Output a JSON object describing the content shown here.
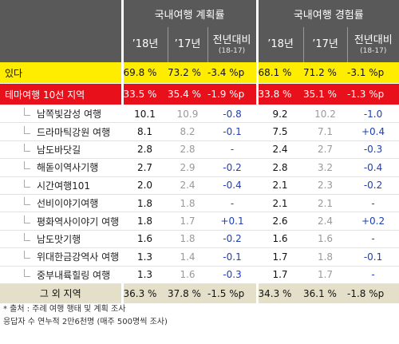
{
  "groups": {
    "plan": "국내여행 계획률",
    "exp": "국내여행 경험률"
  },
  "cols": {
    "y18": "’18년",
    "y17": "’17년",
    "diff": "전년대비",
    "diff_sub": "(18-17)"
  },
  "rows_top": [
    {
      "name": "있다",
      "p18": "69.8 %",
      "p17": "73.2 %",
      "pd": "-3.4 %p",
      "e18": "68.1 %",
      "e17": "71.2 %",
      "ed": "-3.1 %p"
    },
    {
      "name": "테마여행 10선 지역",
      "p18": "33.5 %",
      "p17": "35.4 %",
      "pd": "-1.9 %p",
      "e18": "33.8 %",
      "e17": "35.1 %",
      "ed": "-1.3 %p"
    }
  ],
  "rows": [
    {
      "name": "남쪽빛감성 여행",
      "p18": "10.1",
      "p17": "10.9",
      "pd": "-0.8",
      "e18": "9.2",
      "e17": "10.2",
      "ed": "-1.0"
    },
    {
      "name": "드라마틱강원 여행",
      "p18": "8.1",
      "p17": "8.2",
      "pd": "-0.1",
      "e18": "7.5",
      "e17": "7.1",
      "ed": "+0.4"
    },
    {
      "name": "남도바닷길",
      "p18": "2.8",
      "p17": "2.8",
      "pd": "-",
      "e18": "2.4",
      "e17": "2.7",
      "ed": "-0.3"
    },
    {
      "name": "해돋이역사기행",
      "p18": "2.7",
      "p17": "2.9",
      "pd": "-0.2",
      "e18": "2.8",
      "e17": "3.2",
      "ed": "-0.4"
    },
    {
      "name": "시간여행101",
      "p18": "2.0",
      "p17": "2.4",
      "pd": "-0.4",
      "e18": "2.1",
      "e17": "2.3",
      "ed": "-0.2"
    },
    {
      "name": "선비이야기여행",
      "p18": "1.8",
      "p17": "1.8",
      "pd": "-",
      "e18": "2.1",
      "e17": "2.1",
      "ed": "-"
    },
    {
      "name": "평화역사이야기 여행",
      "p18": "1.8",
      "p17": "1.7",
      "pd": "+0.1",
      "e18": "2.6",
      "e17": "2.4",
      "ed": "+0.2"
    },
    {
      "name": "남도맛기행",
      "p18": "1.6",
      "p17": "1.8",
      "pd": "-0.2",
      "e18": "1.6",
      "e17": "1.6",
      "ed": "-"
    },
    {
      "name": "위대한금강역사 여행",
      "p18": "1.3",
      "p17": "1.4",
      "pd": "-0.1",
      "e18": "1.7",
      "e17": "1.8",
      "ed": "-0.1"
    },
    {
      "name": "중부내륙힐링 여행",
      "p18": "1.3",
      "p17": "1.6",
      "pd": "-0.3",
      "e18": "1.7",
      "e17": "1.7",
      "ed": "-"
    }
  ],
  "row_other": {
    "name": "그 외 지역",
    "p18": "36.3 %",
    "p17": "37.8 %",
    "pd": "-1.5 %p",
    "e18": "34.3 %",
    "e17": "36.1 %",
    "ed": "-1.8 %p"
  },
  "footnote": {
    "line1": "* 출처 : 주례 여행 행태 및 계획 조사",
    "line2": "응답자 수 연누적 2만6천명 (매주 500명씩 조사)"
  },
  "colors": {
    "header": "#595959",
    "yellow": "#ffed00",
    "red": "#e8101a",
    "tan": "#e4dfc9",
    "blue": "#1f3fb4"
  }
}
